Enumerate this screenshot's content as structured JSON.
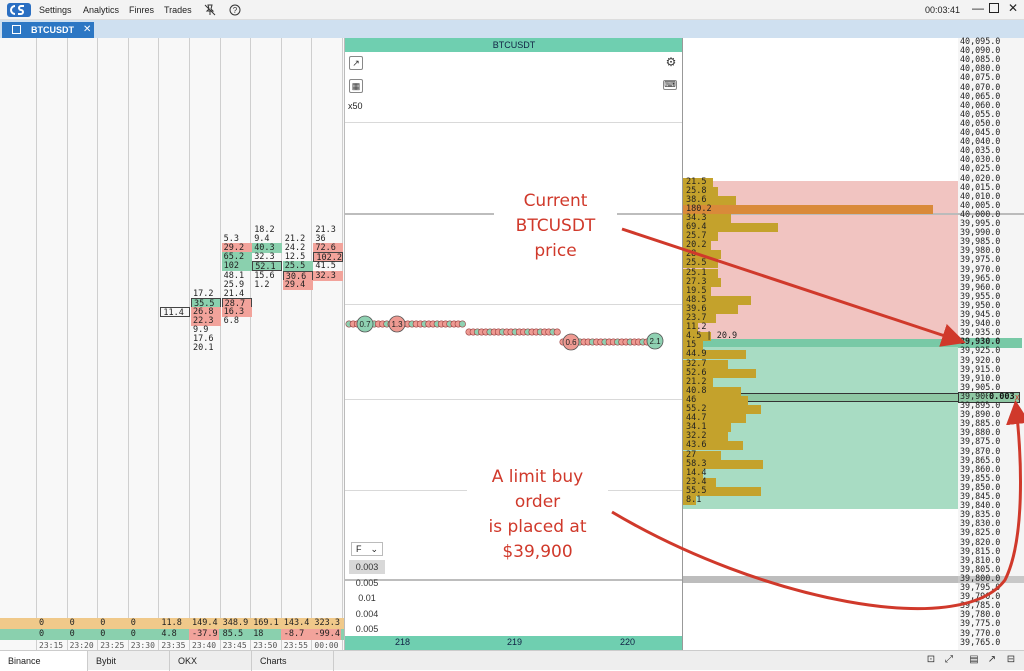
{
  "menu": {
    "items": [
      "Settings",
      "Analytics",
      "Finres",
      "Trades"
    ],
    "clock": "00:03:41"
  },
  "tab": {
    "label": "BTCUSDT",
    "close": "✕"
  },
  "chart": {
    "title": "BTCUSDT",
    "zoom": "x50",
    "filter_label": "F",
    "filter_options": [
      "0.003",
      "0.005",
      "0.01",
      "0.004",
      "0.005"
    ],
    "bottom_ticks": [
      "218",
      "219",
      "220"
    ],
    "bubble_labels": [
      "0.7",
      "1.3",
      "0.6",
      "2.1"
    ]
  },
  "cluster": {
    "columns": [
      {
        "time": "23:15",
        "total_volume": "0",
        "delta": "0"
      },
      {
        "time": "23:20",
        "total_volume": "0",
        "delta": "0"
      },
      {
        "time": "23:25",
        "total_volume": "0",
        "delta": "0"
      },
      {
        "time": "23:30",
        "total_volume": "0",
        "delta": "0"
      },
      {
        "time": "23:35",
        "total_volume": "11.8",
        "delta": "4.8"
      },
      {
        "time": "23:40",
        "total_volume": "149.4",
        "delta": "-37.9"
      },
      {
        "time": "23:45",
        "total_volume": "348.9",
        "delta": "85.5"
      },
      {
        "time": "23:50",
        "total_volume": "169.1",
        "delta": "18"
      },
      {
        "time": "23:55",
        "total_volume": "143.4",
        "delta": "-8.7"
      },
      {
        "time": "00:00",
        "total_volume": "323.3",
        "delta": "-99.4"
      }
    ],
    "cells": [
      {
        "col": 4,
        "row": 29,
        "v": "11.4",
        "t": "n",
        "box": true
      },
      {
        "col": 5,
        "row": 27,
        "v": "17.2",
        "t": "n"
      },
      {
        "col": 5,
        "row": 28,
        "v": "35.5",
        "t": "g",
        "box": true
      },
      {
        "col": 5,
        "row": 29,
        "v": "26.8",
        "t": "r"
      },
      {
        "col": 5,
        "row": 30,
        "v": "22.3",
        "t": "r"
      },
      {
        "col": 5,
        "row": 31,
        "v": "9.9",
        "t": "n"
      },
      {
        "col": 5,
        "row": 32,
        "v": "17.6",
        "t": "n"
      },
      {
        "col": 5,
        "row": 33,
        "v": "20.1",
        "t": "n"
      },
      {
        "col": 6,
        "row": 21,
        "v": "5.3",
        "t": "n"
      },
      {
        "col": 6,
        "row": 22,
        "v": "29.2",
        "t": "r"
      },
      {
        "col": 6,
        "row": 23,
        "v": "65.2",
        "t": "g"
      },
      {
        "col": 6,
        "row": 24,
        "v": "102",
        "t": "g"
      },
      {
        "col": 6,
        "row": 25,
        "v": "48.1",
        "t": "n"
      },
      {
        "col": 6,
        "row": 26,
        "v": "25.9",
        "t": "n"
      },
      {
        "col": 6,
        "row": 27,
        "v": "21.4",
        "t": "n"
      },
      {
        "col": 6,
        "row": 28,
        "v": "28.7",
        "t": "r",
        "box": true
      },
      {
        "col": 6,
        "row": 29,
        "v": "16.3",
        "t": "r"
      },
      {
        "col": 6,
        "row": 30,
        "v": "6.8",
        "t": "n"
      },
      {
        "col": 7,
        "row": 20,
        "v": "18.2",
        "t": "n"
      },
      {
        "col": 7,
        "row": 21,
        "v": "9.4",
        "t": "n"
      },
      {
        "col": 7,
        "row": 22,
        "v": "40.3",
        "t": "g"
      },
      {
        "col": 7,
        "row": 23,
        "v": "32.3",
        "t": "n"
      },
      {
        "col": 7,
        "row": 24,
        "v": "52.1",
        "t": "g",
        "box": true
      },
      {
        "col": 7,
        "row": 25,
        "v": "15.6",
        "t": "n"
      },
      {
        "col": 7,
        "row": 26,
        "v": "1.2",
        "t": "n"
      },
      {
        "col": 8,
        "row": 21,
        "v": "21.2",
        "t": "n"
      },
      {
        "col": 8,
        "row": 22,
        "v": "24.2",
        "t": "n"
      },
      {
        "col": 8,
        "row": 23,
        "v": "12.5",
        "t": "n"
      },
      {
        "col": 8,
        "row": 24,
        "v": "25.5",
        "t": "g"
      },
      {
        "col": 8,
        "row": 25,
        "v": "30.6",
        "t": "r",
        "box": true
      },
      {
        "col": 8,
        "row": 26,
        "v": "29.4",
        "t": "r"
      },
      {
        "col": 9,
        "row": 20,
        "v": "21.3",
        "t": "n"
      },
      {
        "col": 9,
        "row": 21,
        "v": "36",
        "t": "n"
      },
      {
        "col": 9,
        "row": 22,
        "v": "72.6",
        "t": "r"
      },
      {
        "col": 9,
        "row": 23,
        "v": "102.2",
        "t": "r",
        "box": true
      },
      {
        "col": 9,
        "row": 24,
        "v": "41.5",
        "t": "n"
      },
      {
        "col": 9,
        "row": 25,
        "v": "32.3",
        "t": "r"
      }
    ]
  },
  "profile": {
    "bars": [
      {
        "row": 15,
        "v": "21.5",
        "w": 0.12
      },
      {
        "row": 16,
        "v": "25.8",
        "w": 0.14
      },
      {
        "row": 17,
        "v": "38.6",
        "w": 0.21
      },
      {
        "row": 18,
        "v": "180.2",
        "w": 1.0
      },
      {
        "row": 19,
        "v": "34.3",
        "w": 0.19
      },
      {
        "row": 20,
        "v": "69.4",
        "w": 0.38
      },
      {
        "row": 21,
        "v": "25.7",
        "w": 0.14
      },
      {
        "row": 22,
        "v": "20.2",
        "w": 0.11
      },
      {
        "row": 23,
        "v": "28",
        "w": 0.15
      },
      {
        "row": 24,
        "v": "25.5",
        "w": 0.14
      },
      {
        "row": 25,
        "v": "25.1",
        "w": 0.14
      },
      {
        "row": 26,
        "v": "27.3",
        "w": 0.15
      },
      {
        "row": 27,
        "v": "19.5",
        "w": 0.11
      },
      {
        "row": 28,
        "v": "48.5",
        "w": 0.27
      },
      {
        "row": 29,
        "v": "39.6",
        "w": 0.22
      },
      {
        "row": 30,
        "v": "23.7",
        "w": 0.13
      },
      {
        "row": 31,
        "v": "11.2",
        "w": 0.06
      },
      {
        "row": 32,
        "v": "4.5 | 20.9",
        "w": 0.11
      },
      {
        "row": 33,
        "v": "15",
        "w": 0.08
      },
      {
        "row": 34,
        "v": "44.9",
        "w": 0.25
      },
      {
        "row": 35,
        "v": "32.7",
        "w": 0.18
      },
      {
        "row": 36,
        "v": "52.6",
        "w": 0.29
      },
      {
        "row": 37,
        "v": "21.2",
        "w": 0.12
      },
      {
        "row": 38,
        "v": "40.8",
        "w": 0.23
      },
      {
        "row": 39,
        "v": "46",
        "w": 0.26
      },
      {
        "row": 40,
        "v": "55.2",
        "w": 0.31
      },
      {
        "row": 41,
        "v": "44.7",
        "w": 0.25
      },
      {
        "row": 42,
        "v": "34.1",
        "w": 0.19
      },
      {
        "row": 43,
        "v": "32.2",
        "w": 0.18
      },
      {
        "row": 44,
        "v": "43.6",
        "w": 0.24
      },
      {
        "row": 45,
        "v": "27",
        "w": 0.15
      },
      {
        "row": 46,
        "v": "58.3",
        "w": 0.32
      },
      {
        "row": 47,
        "v": "14.4",
        "w": 0.08
      },
      {
        "row": 48,
        "v": "23.4",
        "w": 0.13
      },
      {
        "row": 49,
        "v": "55.5",
        "w": 0.31
      },
      {
        "row": 50,
        "v": "8.1",
        "w": 0.05
      }
    ]
  },
  "price_axis": {
    "prices": [
      "40,095.0",
      "40,090.0",
      "40,085.0",
      "40,080.0",
      "40,075.0",
      "40,070.0",
      "40,065.0",
      "40,060.0",
      "40,055.0",
      "40,050.0",
      "40,045.0",
      "40,040.0",
      "40,035.0",
      "40,030.0",
      "40,025.0",
      "40,020.0",
      "40,015.0",
      "40,010.0",
      "40,005.0",
      "40,000.0",
      "39,995.0",
      "39,990.0",
      "39,985.0",
      "39,980.0",
      "39,975.0",
      "39,970.0",
      "39,965.0",
      "39,960.0",
      "39,955.0",
      "39,950.0",
      "39,945.0",
      "39,940.0",
      "39,935.0",
      "39,930.0",
      "39,925.0",
      "39,920.0",
      "39,915.0",
      "39,910.0",
      "39,905.0",
      "39,900.0",
      "39,895.0",
      "39,890.0",
      "39,885.0",
      "39,880.0",
      "39,875.0",
      "39,870.0",
      "39,865.0",
      "39,860.0",
      "39,855.0",
      "39,850.0",
      "39,845.0",
      "39,840.0",
      "39,835.0",
      "39,830.0",
      "39,825.0",
      "39,820.0",
      "39,815.0",
      "39,810.0",
      "39,805.0",
      "39,800.0",
      "39,795.0",
      "39,790.0",
      "39,785.0",
      "39,780.0",
      "39,775.0",
      "39,770.0",
      "39,765.0"
    ],
    "current_price": "39,930.0",
    "order_price": "39,900",
    "order_size": "0.003",
    "order_cancel": "x"
  },
  "annotations": {
    "current_price": "Current\nBTCUSDT price",
    "limit_order": "A limit buy order\nis placed at\n$39,900"
  },
  "exchanges": [
    "Binance",
    "Bybit",
    "OKX",
    "Charts"
  ],
  "colors": {
    "bid_zone": "#a8dcc3",
    "ask_zone": "#f1c4c1",
    "accent": "#6fcfb0",
    "annotation": "#d0392b"
  }
}
